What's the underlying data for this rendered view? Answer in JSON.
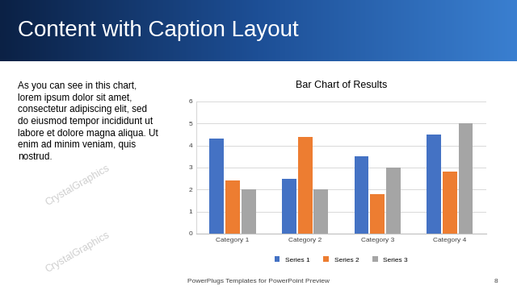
{
  "slide": {
    "title": "Content with Caption Layout",
    "caption": "As you can see in this chart, lorem ipsum dolor sit amet, consectetur adipiscing elit, sed do eiusmod tempor incididunt ut labore et dolore magna aliqua. Ut enim ad minim veniam, quis nostrud.",
    "footer": "PowerPlugs Templates for PowerPoint Preview",
    "page_number": 8,
    "watermark": "CrystalGraphics"
  },
  "chart_data": {
    "type": "bar",
    "title": "Bar Chart of Results",
    "categories": [
      "Category 1",
      "Category 2",
      "Category 3",
      "Category 4"
    ],
    "series": [
      {
        "name": "Series 1",
        "color": "#4472c4",
        "values": [
          4.3,
          2.5,
          3.5,
          4.5
        ]
      },
      {
        "name": "Series 2",
        "color": "#ed7d31",
        "values": [
          2.4,
          4.4,
          1.8,
          2.8
        ]
      },
      {
        "name": "Series 3",
        "color": "#a5a5a5",
        "values": [
          2,
          2,
          3,
          5
        ]
      }
    ],
    "ylim": [
      0,
      6
    ],
    "yticks": [
      0,
      1,
      2,
      3,
      4,
      5,
      6
    ],
    "grid": true,
    "legend": "lower center"
  }
}
